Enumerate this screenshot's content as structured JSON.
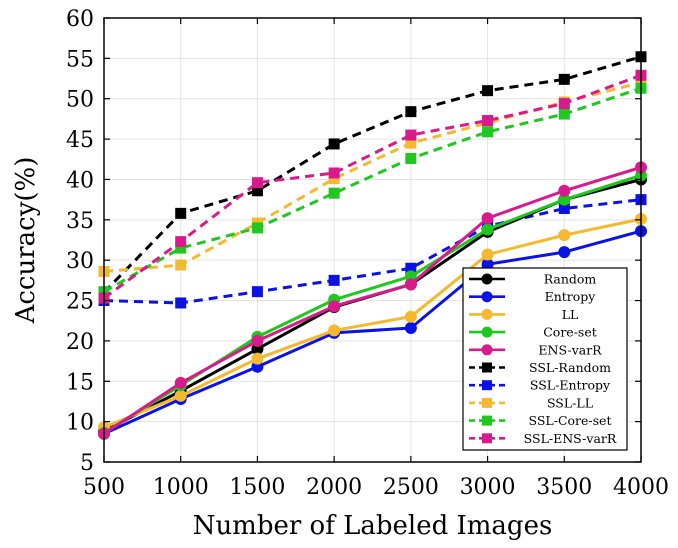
{
  "chart_data": {
    "type": "line",
    "title": "",
    "xlabel": "Number of Labeled Images",
    "ylabel": "Accuracy(%)",
    "x": [
      500,
      1000,
      1500,
      2000,
      2500,
      3000,
      3500,
      4000
    ],
    "xlim": [
      500,
      4000
    ],
    "ylim": [
      5,
      60
    ],
    "x_ticks": [
      500,
      1000,
      1500,
      2000,
      2500,
      3000,
      3500,
      4000
    ],
    "y_ticks": [
      5,
      10,
      15,
      20,
      25,
      30,
      35,
      40,
      45,
      50,
      55,
      60
    ],
    "grid": true,
    "legend_position": "bottom-right",
    "series": [
      {
        "name": "Random",
        "color": "#000000",
        "style": "solid",
        "marker": "circle",
        "values": [
          8.8,
          13.8,
          19.0,
          24.2,
          27.0,
          33.5,
          37.5,
          40.0
        ]
      },
      {
        "name": "Entropy",
        "color": "#0a12e6",
        "style": "solid",
        "marker": "circle",
        "values": [
          8.5,
          12.8,
          16.8,
          21.0,
          21.6,
          29.5,
          31.0,
          33.6
        ]
      },
      {
        "name": "LL",
        "color": "#f5b82e",
        "style": "solid",
        "marker": "circle",
        "values": [
          9.3,
          13.2,
          17.8,
          21.3,
          23.0,
          30.7,
          33.1,
          35.1
        ]
      },
      {
        "name": "Core-set",
        "color": "#1ec81e",
        "style": "solid",
        "marker": "circle",
        "values": [
          8.6,
          14.5,
          20.5,
          25.1,
          28.0,
          33.8,
          37.5,
          40.5
        ]
      },
      {
        "name": "ENS-varR",
        "color": "#d81b8c",
        "style": "solid",
        "marker": "circle",
        "values": [
          8.5,
          14.8,
          20.0,
          24.3,
          27.0,
          35.2,
          38.6,
          41.5
        ]
      },
      {
        "name": "SSL-Random",
        "color": "#000000",
        "style": "dashed",
        "marker": "square",
        "values": [
          26.0,
          35.8,
          38.6,
          44.4,
          48.4,
          51.0,
          52.4,
          55.2
        ]
      },
      {
        "name": "SSL-Entropy",
        "color": "#0a12e6",
        "style": "dashed",
        "marker": "square",
        "values": [
          25.0,
          24.7,
          26.1,
          27.5,
          29.0,
          34.2,
          36.4,
          37.5
        ]
      },
      {
        "name": "SSL-LL",
        "color": "#f5b82e",
        "style": "dashed",
        "marker": "square",
        "values": [
          28.6,
          29.4,
          34.6,
          40.1,
          44.5,
          47.0,
          49.6,
          52.0
        ]
      },
      {
        "name": "SSL-Core-set",
        "color": "#1ec81e",
        "style": "dashed",
        "marker": "square",
        "values": [
          26.1,
          31.5,
          34.0,
          38.3,
          42.6,
          45.9,
          48.1,
          51.3
        ]
      },
      {
        "name": "SSL-ENS-varR",
        "color": "#d81b8c",
        "style": "dashed",
        "marker": "square",
        "values": [
          25.3,
          32.3,
          39.6,
          40.8,
          45.5,
          47.3,
          49.4,
          52.9
        ]
      }
    ]
  }
}
